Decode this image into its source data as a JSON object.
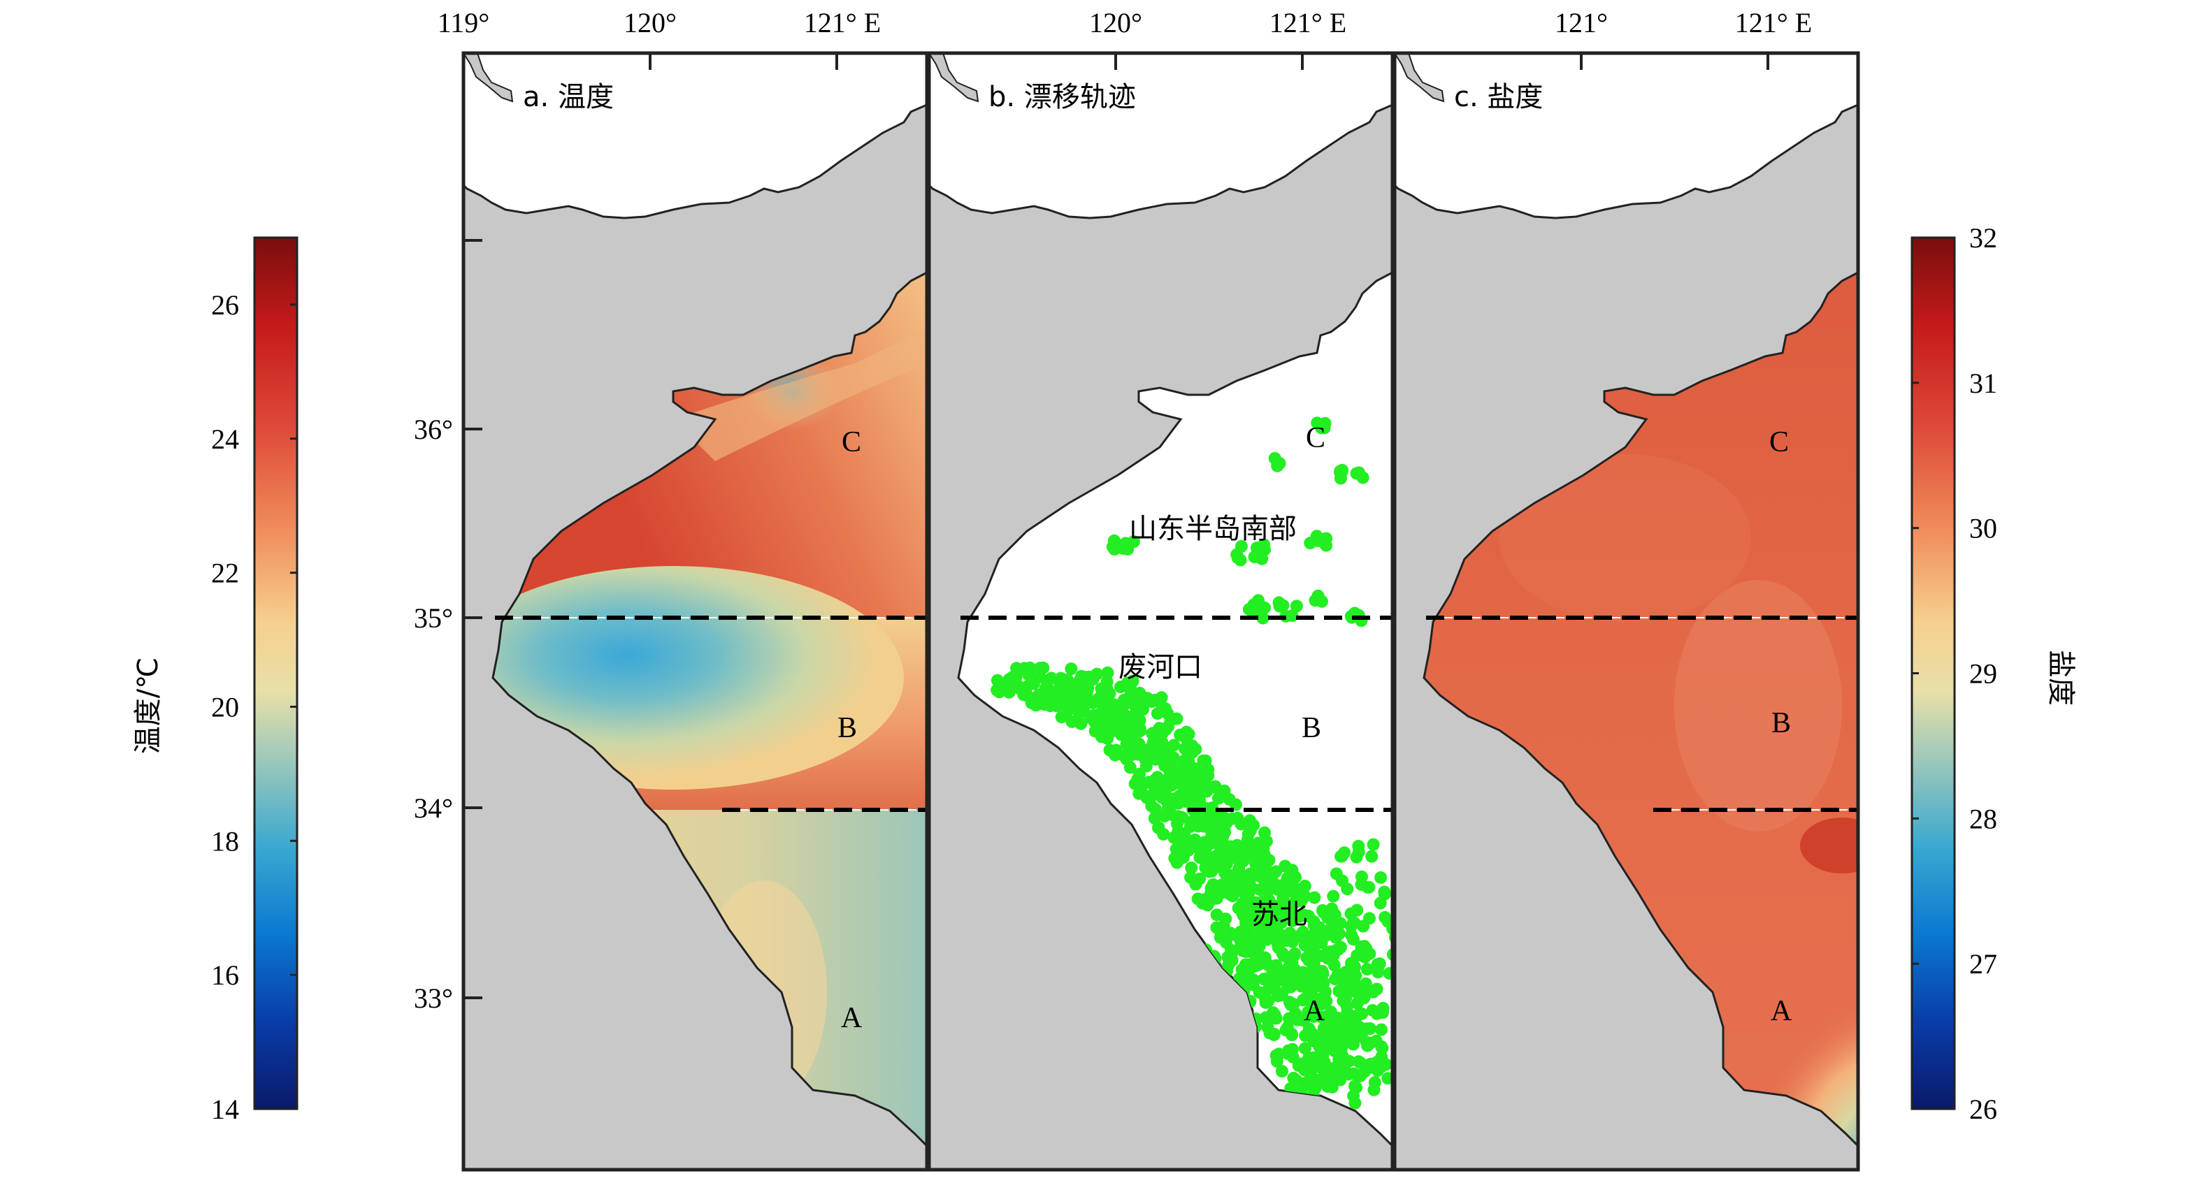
{
  "figure": {
    "colors": {
      "land": "#c8c8c8",
      "water": "#ffffff",
      "trajectory": "#22ee22",
      "border": "#222222"
    },
    "panels": [
      {
        "id": "a",
        "title": "a. 温度",
        "top_ticks": [
          "119°",
          "120°",
          "121° E"
        ],
        "zones": [
          "A",
          "B",
          "C"
        ]
      },
      {
        "id": "b",
        "title": "b. 漂移轨迹",
        "top_ticks": [
          "120°",
          "121° E"
        ],
        "zones": [
          "A",
          "B",
          "C"
        ],
        "places": [
          "山东半岛南部",
          "废河口",
          "苏北"
        ]
      },
      {
        "id": "c",
        "title": "c. 盐度",
        "top_ticks": [
          "121°",
          "121° E"
        ],
        "zones": [
          "A",
          "B",
          "C"
        ]
      }
    ],
    "lat_ticks": [
      "36°",
      "35°",
      "34°",
      "33°"
    ]
  },
  "colorbar_left": {
    "label": "温度/℃",
    "ticks": [
      "26",
      "24",
      "22",
      "20",
      "18",
      "16",
      "14"
    ],
    "min": 14,
    "max": 27
  },
  "colorbar_right": {
    "label": "盐度",
    "ticks": [
      "32",
      "31",
      "30",
      "29",
      "28",
      "27",
      "26"
    ],
    "min": 26,
    "max": 32
  }
}
